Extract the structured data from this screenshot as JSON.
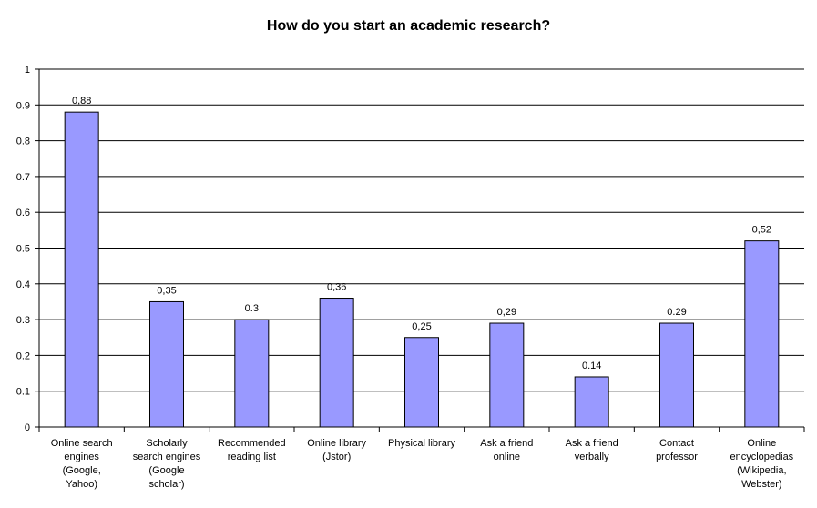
{
  "chart_data": {
    "type": "bar",
    "title": "How do you start an academic research?",
    "xlabel": "",
    "ylabel": "",
    "ylim": [
      0,
      1
    ],
    "yticks": [
      "0",
      "0.1",
      "0.2",
      "0.3",
      "0.4",
      "0.5",
      "0.6",
      "0.7",
      "0.8",
      "0.9",
      "1"
    ],
    "grid": true,
    "legend": "none",
    "bar_color": "#9999ff",
    "categories": [
      [
        "Online search",
        "engines",
        "(Google,",
        "Yahoo)"
      ],
      [
        "Scholarly",
        "search engines",
        "(Google",
        "scholar)"
      ],
      [
        "Recommended",
        "reading list"
      ],
      [
        "Online library",
        "(Jstor)"
      ],
      [
        "Physical library"
      ],
      [
        "Ask a friend",
        "online"
      ],
      [
        "Ask a friend",
        "verbally"
      ],
      [
        "Contact",
        "professor"
      ],
      [
        "Online",
        "encyclopedias",
        "(Wikipedia,",
        "Webster)"
      ]
    ],
    "values": [
      0.88,
      0.35,
      0.3,
      0.36,
      0.25,
      0.29,
      0.14,
      0.29,
      0.52
    ],
    "data_labels": [
      "0,88",
      "0,35",
      "0.3",
      "0,36",
      "0,25",
      "0,29",
      "0.14",
      "0.29",
      "0,52"
    ]
  }
}
